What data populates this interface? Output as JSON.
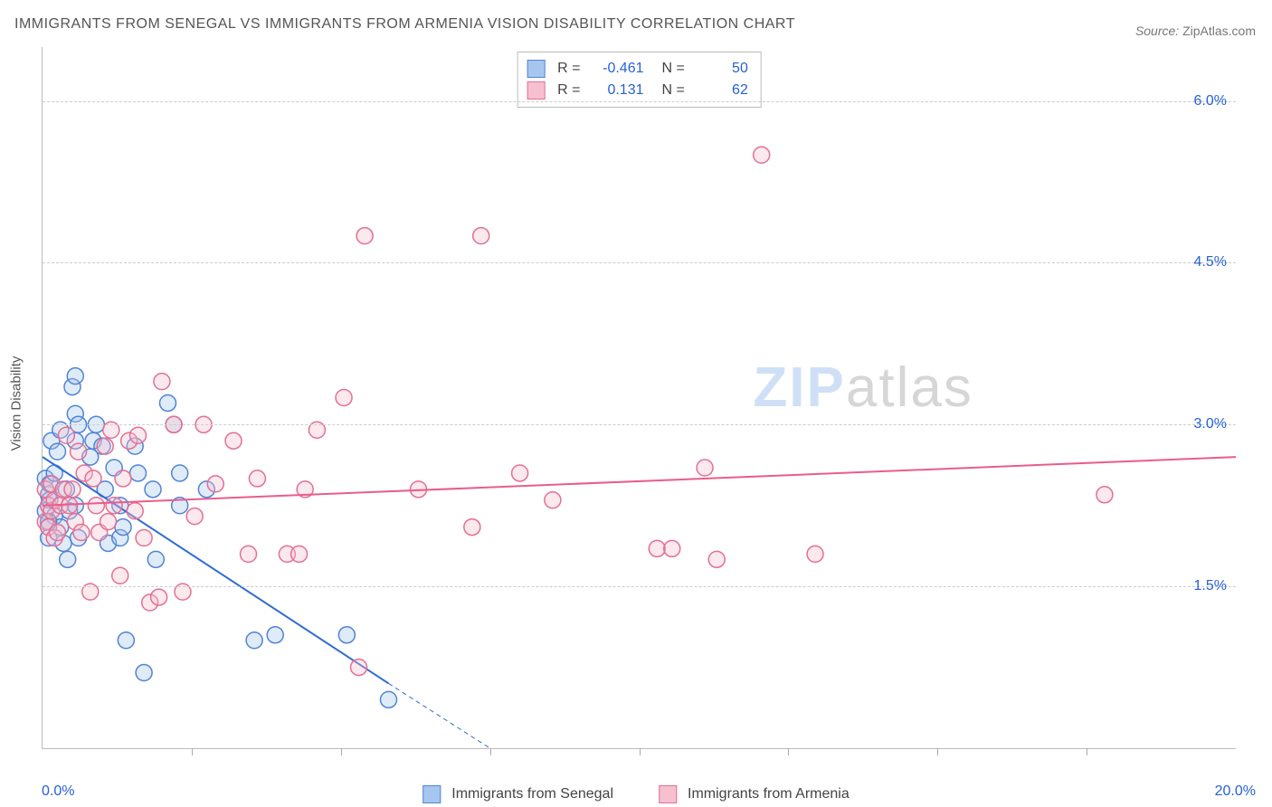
{
  "title": "IMMIGRANTS FROM SENEGAL VS IMMIGRANTS FROM ARMENIA VISION DISABILITY CORRELATION CHART",
  "source_label": "Source:",
  "source_value": "ZipAtlas.com",
  "watermark": {
    "part1": "ZIP",
    "part2": "atlas"
  },
  "y_axis_title": "Vision Disability",
  "chart": {
    "type": "scatter",
    "xlim": [
      0.0,
      20.0
    ],
    "ylim": [
      0.0,
      6.5
    ],
    "x_tick_labels": [
      {
        "value": 0.0,
        "label": "0.0%"
      },
      {
        "value": 20.0,
        "label": "20.0%"
      }
    ],
    "y_grid": [
      {
        "value": 1.5,
        "label": "1.5%"
      },
      {
        "value": 3.0,
        "label": "3.0%"
      },
      {
        "value": 4.5,
        "label": "4.5%"
      },
      {
        "value": 6.0,
        "label": "6.0%"
      }
    ],
    "x_minor_ticks": [
      2.5,
      5.0,
      7.5,
      10.0,
      12.5,
      15.0,
      17.5
    ],
    "tick_label_color": "#2561d6",
    "grid_color": "#cccccc",
    "axis_color": "#bbbbbb",
    "background_color": "#ffffff",
    "marker_radius": 9,
    "series": [
      {
        "name": "Immigrants from Senegal",
        "fill": "#a7c6ef",
        "stroke": "#4f84d6",
        "line_color": "#2f6bd3",
        "R": "-0.461",
        "N": "50",
        "trend": {
          "x1": 0.0,
          "y1": 2.7,
          "x2": 5.8,
          "y2": 0.6
        },
        "trend_dashed_ext": {
          "x1": 5.8,
          "y1": 0.6,
          "x2": 7.5,
          "y2": 0.0
        },
        "points": [
          [
            0.05,
            2.2
          ],
          [
            0.05,
            2.5
          ],
          [
            0.1,
            2.1
          ],
          [
            0.1,
            1.95
          ],
          [
            0.1,
            2.35
          ],
          [
            0.12,
            2.45
          ],
          [
            0.12,
            2.3
          ],
          [
            0.15,
            2.85
          ],
          [
            0.2,
            2.15
          ],
          [
            0.2,
            2.55
          ],
          [
            0.25,
            2.75
          ],
          [
            0.3,
            2.05
          ],
          [
            0.3,
            2.95
          ],
          [
            0.35,
            1.9
          ],
          [
            0.4,
            2.4
          ],
          [
            0.42,
            1.75
          ],
          [
            0.45,
            2.2
          ],
          [
            0.5,
            3.35
          ],
          [
            0.55,
            3.45
          ],
          [
            0.55,
            3.1
          ],
          [
            0.55,
            2.85
          ],
          [
            0.55,
            2.25
          ],
          [
            0.6,
            3.0
          ],
          [
            0.6,
            1.95
          ],
          [
            0.8,
            2.7
          ],
          [
            0.85,
            2.85
          ],
          [
            0.9,
            3.0
          ],
          [
            1.0,
            2.8
          ],
          [
            1.05,
            2.4
          ],
          [
            1.1,
            1.9
          ],
          [
            1.2,
            2.6
          ],
          [
            1.3,
            2.25
          ],
          [
            1.3,
            1.95
          ],
          [
            1.35,
            2.05
          ],
          [
            1.4,
            1.0
          ],
          [
            1.55,
            2.8
          ],
          [
            1.6,
            2.55
          ],
          [
            1.7,
            0.7
          ],
          [
            1.85,
            2.4
          ],
          [
            1.9,
            1.75
          ],
          [
            2.1,
            3.2
          ],
          [
            2.2,
            3.0
          ],
          [
            2.3,
            2.25
          ],
          [
            2.3,
            2.55
          ],
          [
            2.75,
            2.4
          ],
          [
            3.55,
            1.0
          ],
          [
            3.9,
            1.05
          ],
          [
            5.1,
            1.05
          ],
          [
            5.8,
            0.45
          ],
          [
            0.1,
            2.1
          ]
        ]
      },
      {
        "name": "Immigrants from Armenia",
        "fill": "#f6c0cf",
        "stroke": "#e46f93",
        "line_color": "#e85d8d",
        "R": "0.131",
        "N": "62",
        "trend": {
          "x1": 0.0,
          "y1": 2.25,
          "x2": 20.0,
          "y2": 2.7
        },
        "points": [
          [
            0.05,
            2.4
          ],
          [
            0.05,
            2.1
          ],
          [
            0.1,
            2.05
          ],
          [
            0.1,
            2.25
          ],
          [
            0.15,
            2.2
          ],
          [
            0.15,
            2.45
          ],
          [
            0.2,
            1.95
          ],
          [
            0.2,
            2.3
          ],
          [
            0.25,
            2.0
          ],
          [
            0.3,
            2.25
          ],
          [
            0.35,
            2.4
          ],
          [
            0.4,
            2.9
          ],
          [
            0.45,
            2.25
          ],
          [
            0.5,
            2.4
          ],
          [
            0.55,
            2.1
          ],
          [
            0.6,
            2.75
          ],
          [
            0.65,
            2.0
          ],
          [
            0.7,
            2.55
          ],
          [
            0.8,
            1.45
          ],
          [
            0.85,
            2.5
          ],
          [
            0.9,
            2.25
          ],
          [
            0.95,
            2.0
          ],
          [
            1.05,
            2.8
          ],
          [
            1.1,
            2.1
          ],
          [
            1.15,
            2.95
          ],
          [
            1.2,
            2.25
          ],
          [
            1.3,
            1.6
          ],
          [
            1.35,
            2.5
          ],
          [
            1.45,
            2.85
          ],
          [
            1.55,
            2.2
          ],
          [
            1.6,
            2.9
          ],
          [
            1.7,
            1.95
          ],
          [
            1.8,
            1.35
          ],
          [
            1.95,
            1.4
          ],
          [
            2.0,
            3.4
          ],
          [
            2.2,
            3.0
          ],
          [
            2.35,
            1.45
          ],
          [
            2.55,
            2.15
          ],
          [
            2.7,
            3.0
          ],
          [
            2.9,
            2.45
          ],
          [
            3.2,
            2.85
          ],
          [
            3.45,
            1.8
          ],
          [
            3.6,
            2.5
          ],
          [
            4.1,
            1.8
          ],
          [
            4.3,
            1.8
          ],
          [
            4.4,
            2.4
          ],
          [
            4.6,
            2.95
          ],
          [
            5.05,
            3.25
          ],
          [
            5.3,
            0.75
          ],
          [
            5.4,
            4.75
          ],
          [
            6.3,
            2.4
          ],
          [
            7.2,
            2.05
          ],
          [
            7.35,
            4.75
          ],
          [
            8.0,
            2.55
          ],
          [
            8.55,
            2.3
          ],
          [
            10.3,
            1.85
          ],
          [
            10.55,
            1.85
          ],
          [
            11.1,
            2.6
          ],
          [
            11.3,
            1.75
          ],
          [
            12.05,
            5.5
          ],
          [
            12.95,
            1.8
          ],
          [
            17.8,
            2.35
          ]
        ]
      }
    ]
  },
  "bottom_legend": {
    "items": [
      {
        "swatch_fill": "#a7c6ef",
        "swatch_stroke": "#4f84d6",
        "label": "Immigrants from Senegal"
      },
      {
        "swatch_fill": "#f6c0cf",
        "swatch_stroke": "#e46f93",
        "label": "Immigrants from Armenia"
      }
    ]
  }
}
